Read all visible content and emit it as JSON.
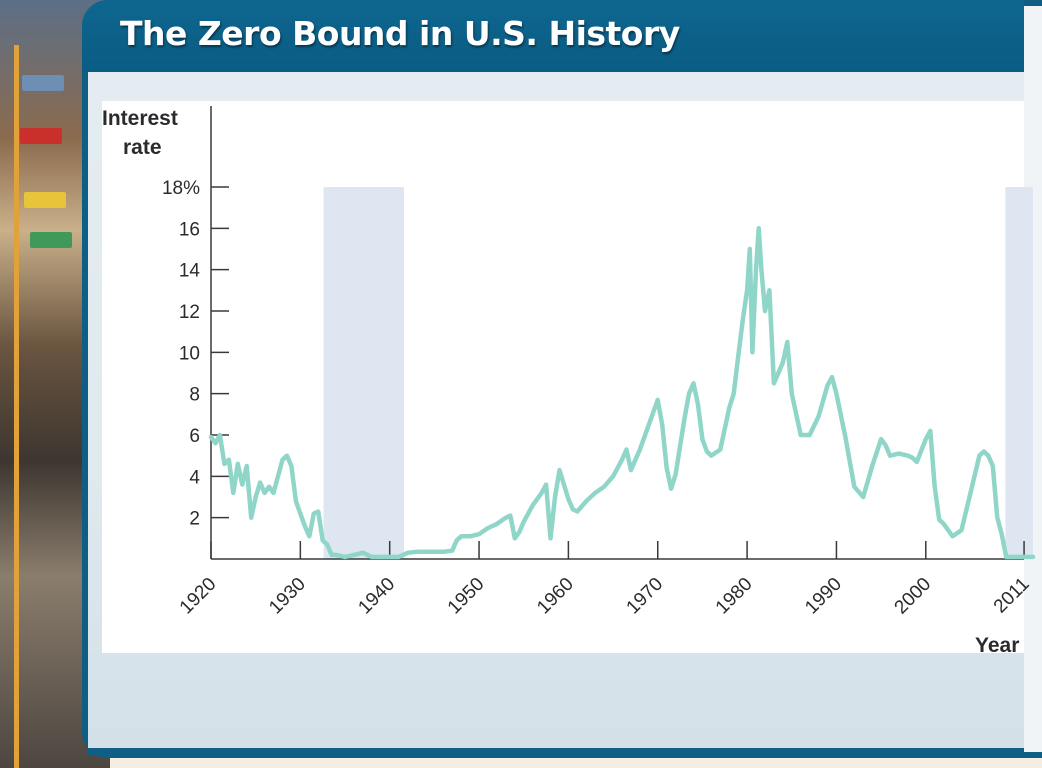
{
  "slide": {
    "title": "The Zero Bound in U.S. History"
  },
  "colors": {
    "header": "#0a5c83",
    "line": "#8fd6c9",
    "shade": "#dde6f1"
  },
  "chart_data": {
    "type": "line",
    "title": "",
    "ylabel_line1": "Interest",
    "ylabel_line2": "rate",
    "xlabel": "Year",
    "xlim": [
      1920,
      2012
    ],
    "ylim": [
      0,
      18
    ],
    "grid": false,
    "yticks": [
      {
        "value": 18,
        "label": "18%"
      },
      {
        "value": 16,
        "label": "16"
      },
      {
        "value": 14,
        "label": "14"
      },
      {
        "value": 12,
        "label": "12"
      },
      {
        "value": 10,
        "label": "10"
      },
      {
        "value": 8,
        "label": "8"
      },
      {
        "value": 6,
        "label": "6"
      },
      {
        "value": 4,
        "label": "4"
      },
      {
        "value": 2,
        "label": "2"
      }
    ],
    "xticks": [
      {
        "value": 1920,
        "label": "1920"
      },
      {
        "value": 1930,
        "label": "1930"
      },
      {
        "value": 1940,
        "label": "1940"
      },
      {
        "value": 1950,
        "label": "1950"
      },
      {
        "value": 1960,
        "label": "1960"
      },
      {
        "value": 1970,
        "label": "1970"
      },
      {
        "value": 1980,
        "label": "1980"
      },
      {
        "value": 1990,
        "label": "1990"
      },
      {
        "value": 2000,
        "label": "2000"
      },
      {
        "value": 2011,
        "label": "2011"
      }
    ],
    "shaded_periods": [
      {
        "start": 1932.6,
        "end": 1941.6
      },
      {
        "start": 2008.9,
        "end": 2012
      }
    ],
    "series": [
      {
        "x": [
          1920.0,
          1920.5,
          1921.0,
          1921.5,
          1922.0,
          1922.5,
          1923.0,
          1923.5,
          1924.0,
          1924.5,
          1925.0,
          1925.5,
          1926.0,
          1926.5,
          1927.0,
          1927.5,
          1928.0,
          1928.5,
          1929.0,
          1929.5,
          1930.0,
          1930.5,
          1931.0,
          1931.5,
          1932.0,
          1932.5,
          1933.0,
          1933.5,
          1934.0,
          1935.0,
          1936.0,
          1937.0,
          1938.0,
          1939.0,
          1940.0,
          1941.0,
          1942.0,
          1943.0,
          1944.0,
          1945.0,
          1946.0,
          1947.0,
          1947.5,
          1948.0,
          1949.0,
          1950.0,
          1951.0,
          1952.0,
          1953.0,
          1953.5,
          1954.0,
          1954.5,
          1955.0,
          1956.0,
          1957.0,
          1957.5,
          1958.0,
          1958.5,
          1959.0,
          1960.0,
          1960.5,
          1961.0,
          1962.0,
          1963.0,
          1964.0,
          1965.0,
          1966.0,
          1966.5,
          1967.0,
          1968.0,
          1969.0,
          1970.0,
          1970.5,
          1971.0,
          1971.5,
          1972.0,
          1973.0,
          1973.5,
          1974.0,
          1974.5,
          1975.0,
          1975.5,
          1976.0,
          1977.0,
          1978.0,
          1978.5,
          1979.0,
          1979.5,
          1980.0,
          1980.3,
          1980.6,
          1981.0,
          1981.3,
          1981.6,
          1982.0,
          1982.5,
          1983.0,
          1984.0,
          1984.5,
          1985.0,
          1986.0,
          1987.0,
          1988.0,
          1989.0,
          1989.5,
          1990.0,
          1991.0,
          1992.0,
          1993.0,
          1994.0,
          1995.0,
          1995.5,
          1996.0,
          1997.0,
          1998.0,
          1998.5,
          1999.0,
          2000.0,
          2000.5,
          2001.0,
          2001.5,
          2002.0,
          2003.0,
          2004.0,
          2005.0,
          2006.0,
          2006.5,
          2007.0,
          2007.5,
          2008.0,
          2008.5,
          2009.0,
          2010.0,
          2011.0,
          2012.0
        ],
        "y": [
          5.9,
          5.6,
          6.0,
          4.6,
          4.8,
          3.2,
          4.6,
          3.6,
          4.5,
          2.0,
          3.0,
          3.7,
          3.2,
          3.5,
          3.2,
          4.0,
          4.8,
          5.0,
          4.5,
          2.8,
          2.2,
          1.6,
          1.1,
          2.2,
          2.3,
          0.9,
          0.7,
          0.2,
          0.2,
          0.1,
          0.2,
          0.3,
          0.1,
          0.1,
          0.1,
          0.1,
          0.3,
          0.35,
          0.35,
          0.35,
          0.35,
          0.4,
          0.9,
          1.1,
          1.1,
          1.2,
          1.5,
          1.7,
          2.0,
          2.1,
          1.0,
          1.3,
          1.8,
          2.6,
          3.2,
          3.6,
          1.0,
          3.0,
          4.3,
          2.9,
          2.4,
          2.3,
          2.8,
          3.2,
          3.5,
          4.0,
          4.8,
          5.3,
          4.3,
          5.3,
          6.5,
          7.7,
          6.5,
          4.4,
          3.4,
          4.1,
          6.8,
          8.0,
          8.5,
          7.5,
          5.8,
          5.2,
          5.0,
          5.3,
          7.3,
          8.0,
          9.8,
          11.5,
          13.0,
          15.0,
          10.0,
          14.0,
          16.0,
          14.0,
          12.0,
          13.0,
          8.5,
          9.5,
          10.5,
          8.0,
          6.0,
          6.0,
          6.9,
          8.4,
          8.8,
          8.0,
          5.9,
          3.5,
          3.0,
          4.5,
          5.8,
          5.5,
          5.0,
          5.1,
          5.0,
          4.9,
          4.7,
          5.8,
          6.2,
          3.5,
          1.9,
          1.7,
          1.1,
          1.4,
          3.2,
          5.0,
          5.2,
          5.0,
          4.5,
          2.0,
          1.2,
          0.1,
          0.1,
          0.1,
          0.1
        ]
      }
    ]
  }
}
